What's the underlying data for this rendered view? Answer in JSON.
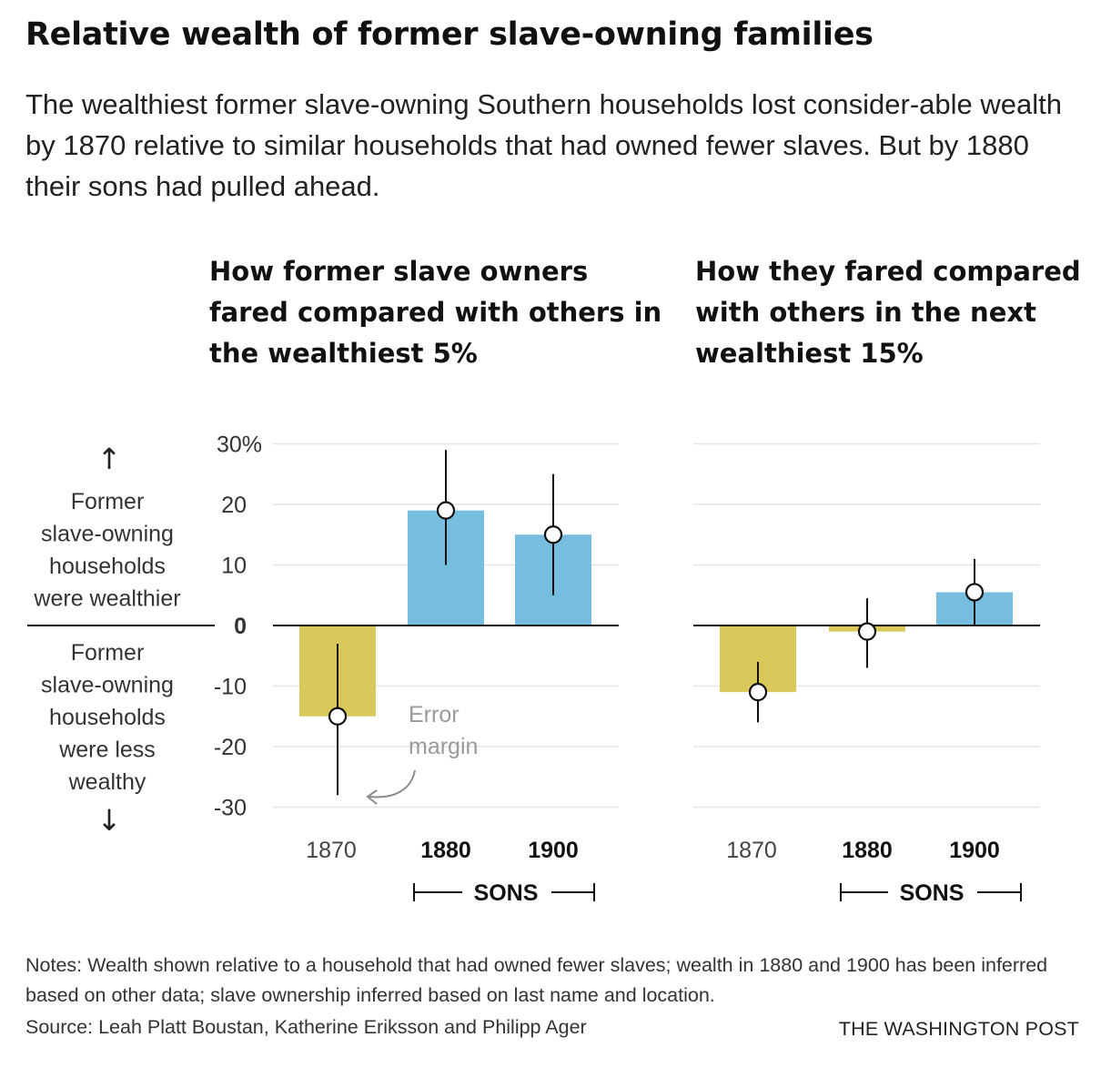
{
  "title": "Relative wealth of former slave-owning families",
  "subtitle": "The wealthiest former slave-owning Southern households lost consider-able wealth by 1870 relative to similar households that had owned fewer slaves. But by 1880 their sons had pulled ahead.",
  "notes": "Notes: Wealth shown relative to a household that had owned fewer slaves; wealth in 1880 and 1900 has been inferred based on other data; slave ownership inferred based on last name and location.",
  "source": "Source: Leah Platt Boustan, Katherine Eriksson and Philipp Ager",
  "credit": "THE WASHINGTON POST",
  "y_axis_annotation": {
    "up_arrow": "↑",
    "upper_text": [
      "Former",
      "slave-owning",
      "households",
      "were wealthier"
    ],
    "lower_text": [
      "Former",
      "slave-owning",
      "households",
      "were less",
      "wealthy"
    ],
    "down_arrow": "↓"
  },
  "sons_label": "SONS",
  "error_callout": [
    "Error",
    "margin"
  ],
  "colors": {
    "negative": "#d8c95a",
    "positive": "#76bde0",
    "axis": "#111111",
    "grid": "#e6e6e6"
  },
  "chart_data": [
    {
      "type": "bar",
      "title": "How former slave owners fared compared with others in the wealthiest 5%",
      "categories": [
        "1870",
        "1880",
        "1900"
      ],
      "bold_categories": [
        "1880",
        "1900"
      ],
      "values": [
        -15,
        19,
        15
      ],
      "error_low": [
        -28,
        10,
        5
      ],
      "error_high": [
        -3,
        29,
        25
      ],
      "ylim": [
        -30,
        30
      ],
      "yticks": [
        30,
        20,
        10,
        0,
        -10,
        -20,
        -30
      ],
      "ytick_labels": [
        "30%",
        "20",
        "10",
        "0",
        "-10",
        "-20",
        "-30"
      ],
      "grid": true
    },
    {
      "type": "bar",
      "title": "How they fared compared with others in the next wealthiest 15%",
      "categories": [
        "1870",
        "1880",
        "1900"
      ],
      "bold_categories": [
        "1880",
        "1900"
      ],
      "values": [
        -11,
        -1,
        5.5
      ],
      "error_low": [
        -16,
        -7,
        0
      ],
      "error_high": [
        -6,
        4.5,
        11
      ],
      "ylim": [
        -30,
        30
      ],
      "grid": true
    }
  ]
}
